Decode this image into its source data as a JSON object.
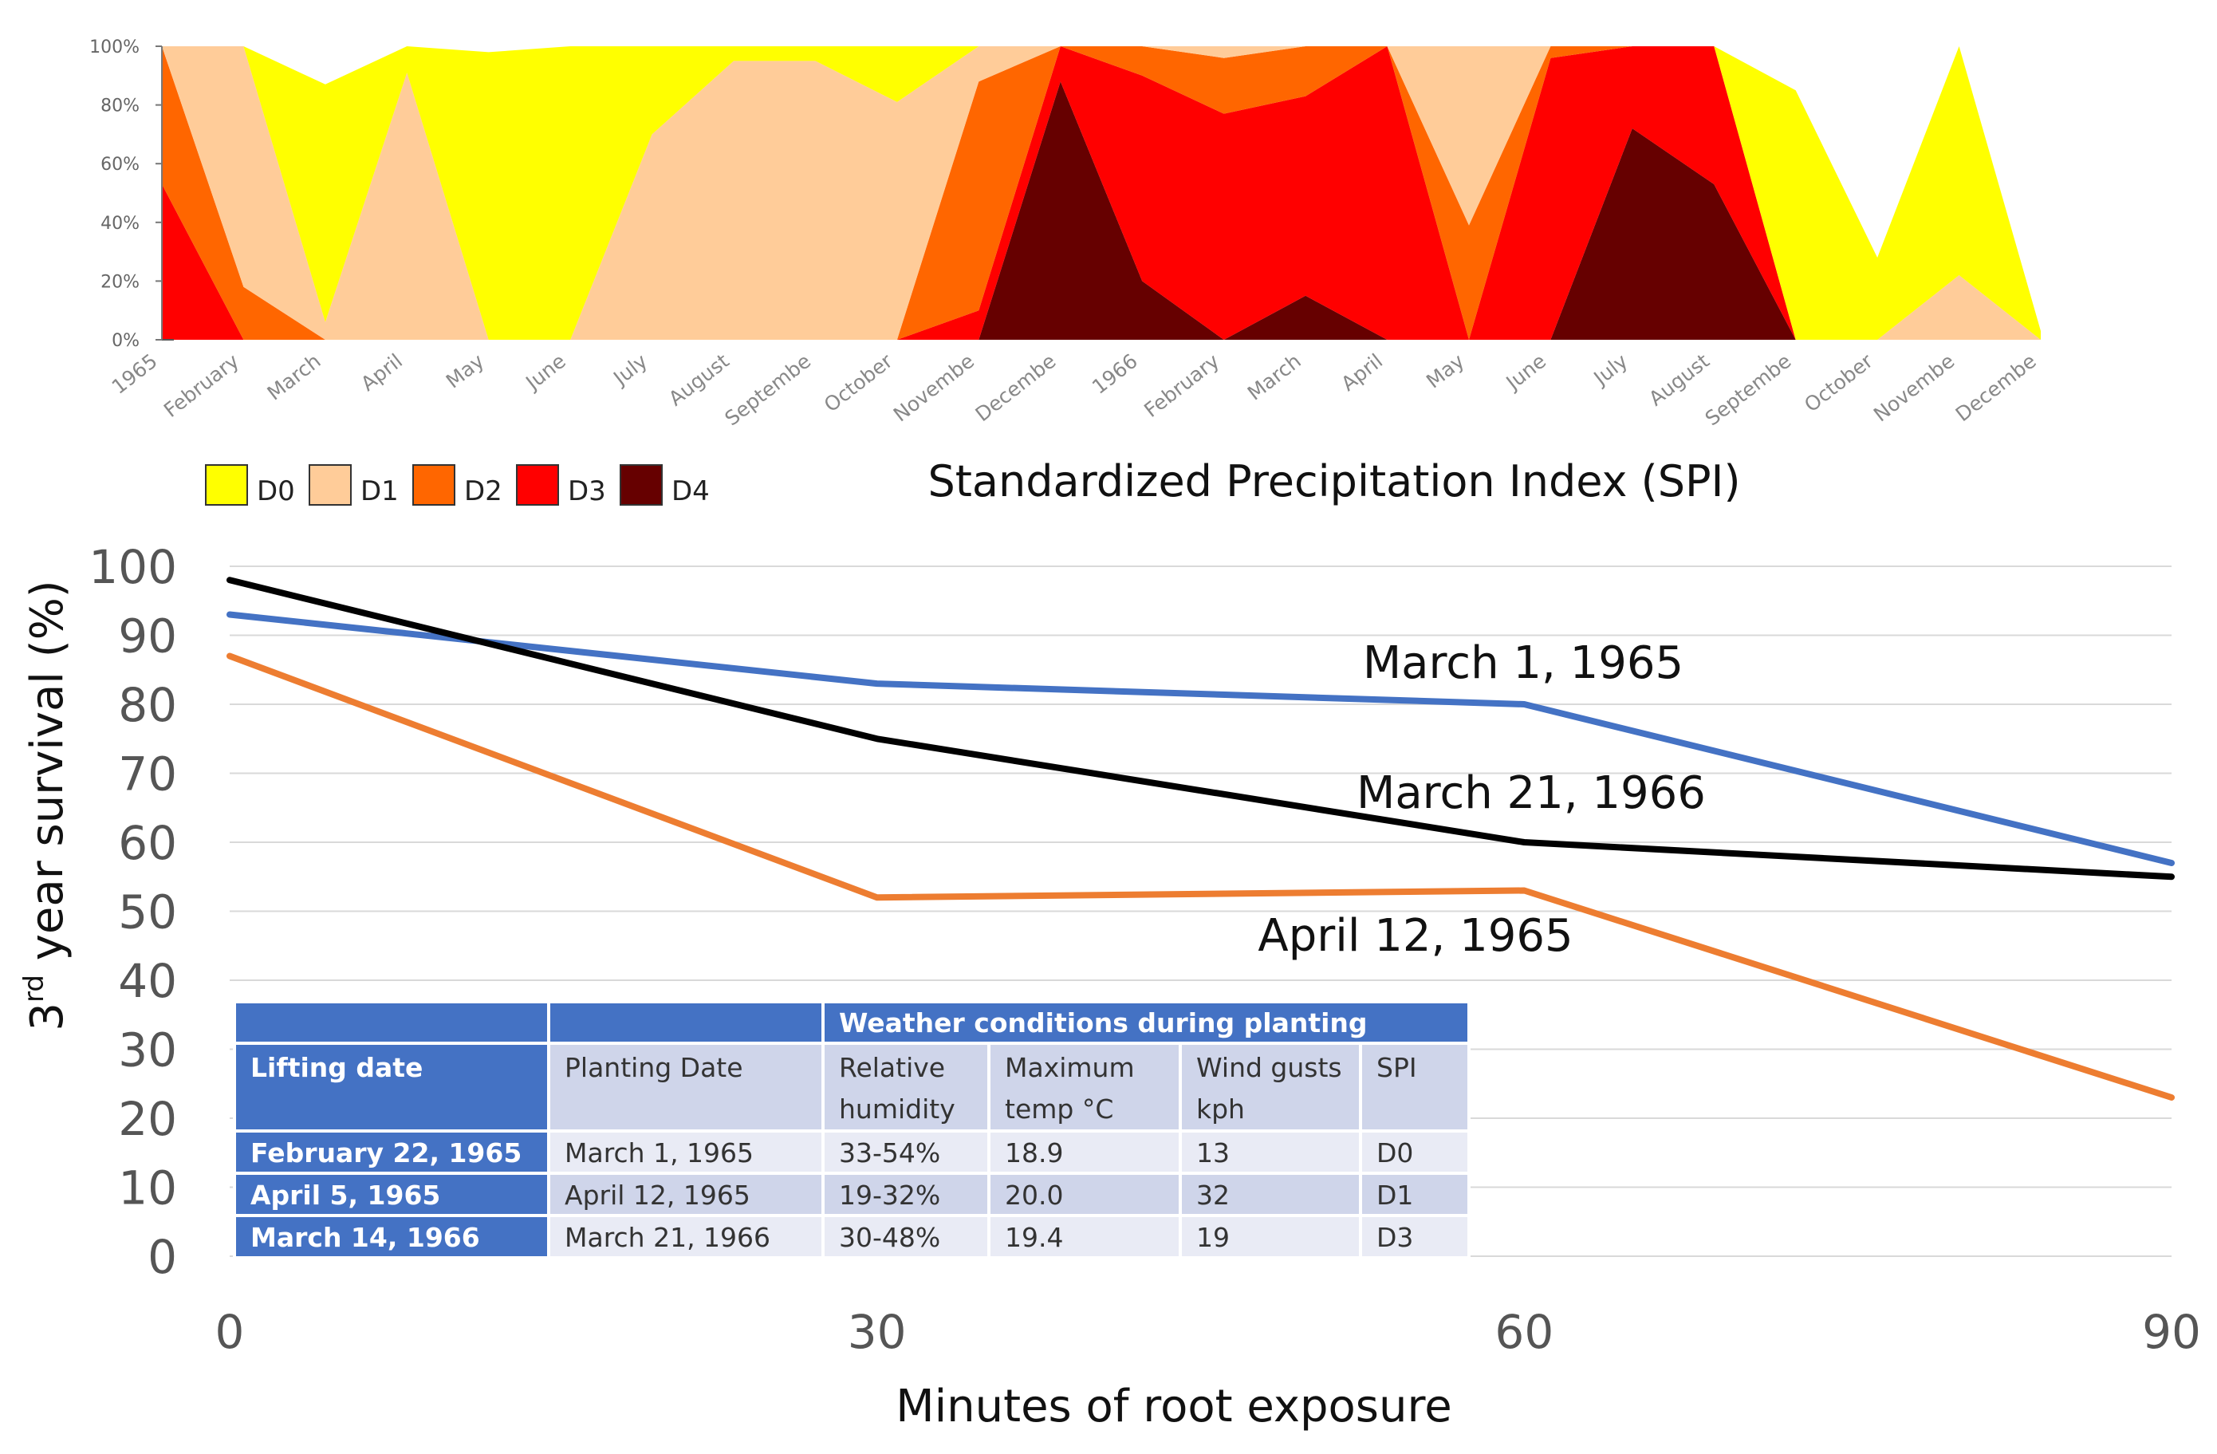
{
  "chart_data": [
    {
      "type": "area",
      "stacking": "percent",
      "title": "Standardized Precipitation Index (SPI)",
      "ylim": [
        0,
        100
      ],
      "yticks": [
        "0%",
        "20%",
        "40%",
        "60%",
        "80%",
        "100%"
      ],
      "categories": [
        "1965",
        "February",
        "March",
        "April",
        "May",
        "June",
        "July",
        "August",
        "Septembe",
        "October",
        "Novembe",
        "Decembe",
        "1966",
        "February",
        "March",
        "April",
        "May",
        "June",
        "July",
        "August",
        "Septembe",
        "October",
        "Novembe",
        "Decembe"
      ],
      "series": [
        {
          "name": "D4",
          "color": "#660000",
          "values": [
            0,
            0,
            0,
            0,
            0,
            0,
            0,
            0,
            0,
            0,
            0,
            88,
            20,
            0,
            15,
            0,
            0,
            0,
            72,
            53,
            0,
            0,
            0,
            0
          ]
        },
        {
          "name": "D3",
          "color": "#ff0000",
          "values": [
            53,
            0,
            0,
            0,
            0,
            0,
            0,
            0,
            0,
            0,
            10,
            12,
            70,
            77,
            68,
            100,
            0,
            96,
            28,
            47,
            0,
            0,
            0,
            0
          ]
        },
        {
          "name": "D2",
          "color": "#ff6600",
          "values": [
            47,
            18,
            0,
            0,
            0,
            0,
            0,
            0,
            0,
            0,
            78,
            0,
            10,
            19,
            17,
            0,
            39,
            4,
            0,
            0,
            0,
            0,
            0,
            0
          ]
        },
        {
          "name": "D1",
          "color": "#ffcc99",
          "values": [
            0,
            82,
            6,
            91,
            0,
            0,
            70,
            95,
            95,
            81,
            12,
            0,
            0,
            4,
            0,
            0,
            61,
            0,
            0,
            0,
            0,
            0,
            22,
            0
          ]
        },
        {
          "name": "D0",
          "color": "#ffff00",
          "values": [
            0,
            0,
            81,
            9,
            98,
            100,
            30,
            5,
            5,
            19,
            0,
            0,
            0,
            0,
            0,
            0,
            0,
            0,
            0,
            0,
            85,
            28,
            78,
            7
          ]
        }
      ],
      "final_point_total": 3,
      "legend": [
        "D0",
        "D1",
        "D2",
        "D3",
        "D4"
      ],
      "legend_position": "bottom-left"
    },
    {
      "type": "line",
      "xlabel": "Minutes of root exposure",
      "ylabel_pre": "3",
      "ylabel_sup": "rd",
      "ylabel_post": " year survival (%)",
      "x": [
        0,
        30,
        60,
        90
      ],
      "xticks": [
        "0",
        "30",
        "60",
        "90"
      ],
      "ylim": [
        0,
        100
      ],
      "yticks": [
        "0",
        "10",
        "20",
        "30",
        "40",
        "50",
        "60",
        "70",
        "80",
        "90",
        "100"
      ],
      "series": [
        {
          "name": "March 1, 1965",
          "color": "#4472c4",
          "values": [
            93,
            83,
            80,
            57
          ]
        },
        {
          "name": "March 21, 1966",
          "color": "#000000",
          "values": [
            98,
            75,
            60,
            55
          ]
        },
        {
          "name": "April 12, 1965",
          "color": "#ed7d31",
          "values": [
            87,
            52,
            53,
            23
          ]
        }
      ]
    }
  ],
  "weather_table": {
    "group_header": "Weather conditions during planting",
    "headers": [
      [
        "Lifting date"
      ],
      [
        "Planting Date"
      ],
      [
        "Relative",
        "humidity"
      ],
      [
        "Maximum",
        "temp °C"
      ],
      [
        "Wind gusts",
        "kph"
      ],
      [
        "SPI"
      ]
    ],
    "rows": [
      [
        "February 22, 1965",
        "March 1, 1965",
        "33-54%",
        "18.9",
        "13",
        "D0"
      ],
      [
        "April 5, 1965",
        "April 12, 1965",
        "19-32%",
        "20.0",
        "32",
        "D1"
      ],
      [
        "March 14, 1966",
        "March 21, 1966",
        "30-48%",
        "19.4",
        "19",
        "D3"
      ]
    ]
  },
  "colors": {
    "header_blue": "#4472c4",
    "cell_dark": "#cfd5ea",
    "cell_light": "#e9ebf5",
    "grid": "#d9d9d9"
  }
}
